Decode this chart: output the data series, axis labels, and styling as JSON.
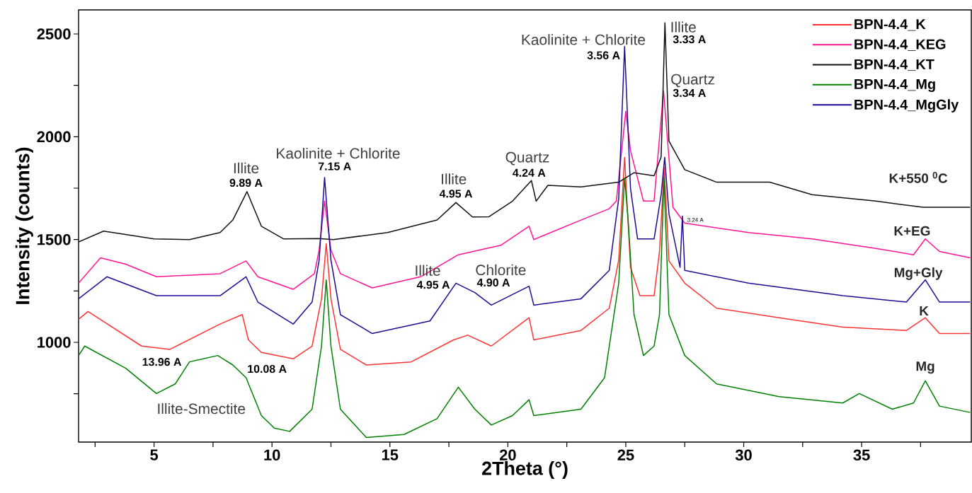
{
  "chart_data": {
    "type": "line",
    "xlabel": "2Theta (°)",
    "ylabel": "Intensity (counts)",
    "xlim": [
      1.8,
      39.65
    ],
    "ylim": [
      515,
      2617
    ],
    "xticks": [
      {
        "value": 2.5,
        "label": null
      },
      5,
      {
        "value": 7.5,
        "label": null
      },
      10,
      {
        "value": 12.5,
        "label": null
      },
      15,
      {
        "value": 17.5,
        "label": null
      },
      20,
      {
        "value": 22.5,
        "label": null
      },
      25,
      {
        "value": 27.5,
        "label": null
      },
      30,
      {
        "value": 32.5,
        "label": null
      },
      35,
      {
        "value": 37.5,
        "label": null
      }
    ],
    "yticks": [
      {
        "value": 750,
        "label": null
      },
      1000,
      {
        "value": 1250,
        "label": null
      },
      1500,
      {
        "value": 1750,
        "label": null
      },
      2000,
      {
        "value": 2250,
        "label": null
      },
      2500
    ],
    "legend": "top right",
    "series": [
      {
        "name": "BPN-4.4_K",
        "color": "#ff3333",
        "x": [
          1.8,
          2.2,
          4.47,
          5.67,
          7.8,
          8.74,
          9.0,
          9.55,
          10.9,
          11.7,
          12.1,
          12.3,
          12.5,
          12.9,
          14.0,
          15.9,
          17.7,
          18.3,
          19.3,
          20.9,
          21.1,
          23.1,
          24.3,
          24.7,
          24.95,
          25.2,
          25.6,
          26.2,
          26.43,
          26.63,
          26.83,
          27.5,
          28.85,
          31.5,
          34.2,
          36.9,
          37.7,
          38.3,
          39.6
        ],
        "values": [
          1112,
          1150,
          982,
          966,
          1089,
          1135,
          1012,
          951,
          920,
          982,
          1212,
          1480,
          1212,
          966,
          890,
          905,
          1012,
          1035,
          982,
          1120,
          1012,
          1058,
          1166,
          1400,
          1900,
          1365,
          1227,
          1227,
          1442,
          1850,
          1396,
          1288,
          1166,
          1120,
          1074,
          1058,
          1120,
          1043,
          1043
        ]
      },
      {
        "name": "BPN-4.4_KEG",
        "color": "#ff1493",
        "x": [
          1.8,
          2.73,
          3.8,
          5.1,
          7.8,
          8.9,
          9.4,
          10.9,
          11.8,
          12.0,
          12.23,
          12.5,
          12.9,
          14.25,
          16.3,
          17.9,
          19.7,
          20.9,
          21.1,
          23.1,
          24.3,
          24.6,
          25.0,
          25.2,
          25.75,
          26.2,
          26.6,
          27.0,
          27.5,
          30.2,
          32.9,
          35.6,
          37.2,
          37.7,
          38.3,
          39.6
        ],
        "values": [
          1288,
          1411,
          1380,
          1319,
          1334,
          1396,
          1319,
          1258,
          1334,
          1450,
          1687,
          1450,
          1334,
          1265,
          1319,
          1426,
          1472,
          1565,
          1500,
          1595,
          1650,
          1687,
          2124,
          1933,
          1687,
          1687,
          2224,
          1657,
          1580,
          1534,
          1503,
          1457,
          1426,
          1503,
          1442,
          1411
        ]
      },
      {
        "name": "BPN-4.4_KT",
        "color": "#111111",
        "x": [
          1.8,
          2.86,
          3.5,
          5.0,
          6.5,
          7.8,
          8.34,
          8.94,
          9.55,
          10.5,
          12.0,
          12.6,
          14.9,
          17.0,
          17.8,
          18.5,
          19.2,
          20.2,
          21.0,
          21.2,
          21.7,
          23.1,
          24.7,
          25.35,
          26.2,
          26.5,
          26.66,
          26.83,
          27.5,
          28.85,
          31.1,
          32.9,
          35.6,
          37.6,
          39.6
        ],
        "values": [
          1488,
          1541,
          1530,
          1503,
          1500,
          1534,
          1595,
          1733,
          1565,
          1503,
          1505,
          1500,
          1534,
          1595,
          1680,
          1610,
          1611,
          1687,
          1787,
          1687,
          1764,
          1756,
          1779,
          1825,
          1810,
          1902,
          2554,
          1979,
          1840,
          1779,
          1779,
          1718,
          1687,
          1657,
          1657
        ]
      },
      {
        "name": "BPN-4.4_Mg",
        "color": "#008000",
        "x": [
          1.8,
          2.06,
          3.8,
          5.1,
          5.9,
          6.5,
          7.7,
          8.34,
          8.9,
          9.55,
          10.1,
          10.75,
          11.7,
          12.1,
          12.3,
          12.5,
          12.9,
          14.0,
          15.6,
          17.0,
          17.9,
          18.6,
          19.3,
          20.2,
          20.9,
          21.1,
          23.1,
          24.1,
          24.7,
          24.95,
          25.1,
          25.35,
          25.75,
          26.2,
          26.43,
          26.62,
          26.83,
          27.5,
          28.85,
          31.5,
          34.2,
          34.9,
          36.3,
          37.2,
          37.7,
          38.3,
          39.6
        ],
        "values": [
          936,
          982,
          874,
          751,
          798,
          905,
          936,
          890,
          828,
          644,
          583,
          567,
          675,
          982,
          1304,
          982,
          675,
          537,
          552,
          629,
          782,
          675,
          598,
          644,
          721,
          644,
          675,
          828,
          1288,
          1800,
          1595,
          1135,
          936,
          982,
          1135,
          1800,
          1135,
          936,
          798,
          736,
          705,
          751,
          675,
          705,
          813,
          690,
          659
        ]
      },
      {
        "name": "BPN-4.4_MgGly",
        "color": "#1f0a96",
        "x": [
          1.8,
          3.0,
          5.1,
          7.8,
          8.9,
          9.4,
          10.9,
          11.7,
          12.0,
          12.23,
          12.5,
          12.9,
          14.25,
          16.7,
          17.8,
          18.6,
          19.3,
          20.9,
          21.1,
          23.1,
          24.3,
          24.7,
          24.95,
          25.2,
          25.5,
          26.2,
          26.5,
          26.65,
          26.83,
          27.3,
          27.4,
          27.5,
          30.2,
          34.2,
          36.9,
          37.7,
          38.3,
          39.6
        ],
        "values": [
          1212,
          1319,
          1227,
          1227,
          1319,
          1196,
          1089,
          1196,
          1400,
          1802,
          1400,
          1135,
          1043,
          1104,
          1288,
          1242,
          1181,
          1273,
          1181,
          1212,
          1350,
          1700,
          2439,
          1749,
          1503,
          1503,
          1718,
          1900,
          1626,
          1365,
          1614,
          1350,
          1288,
          1227,
          1196,
          1304,
          1196,
          1196
        ]
      }
    ],
    "annotations": [
      "Illite",
      "Kaolinite + Chlorite",
      "Illite",
      "Quartz",
      "Illite",
      "Chlorite",
      "Kaolinite + Chlorite",
      "Illite",
      "Quartz",
      "Illite-Smectite",
      "9.89 A",
      "7.15 A",
      "4.95 A",
      "4.24 A",
      "4.95 A",
      "4.90 A",
      "3.56 A",
      "3.33 A",
      "3.34 A",
      "13.96 A",
      "10.08 A",
      "K+550 $^{0}$C",
      "K+EG",
      "Mg+Gly",
      "K",
      "Mg",
      "3.24 A"
    ]
  }
}
